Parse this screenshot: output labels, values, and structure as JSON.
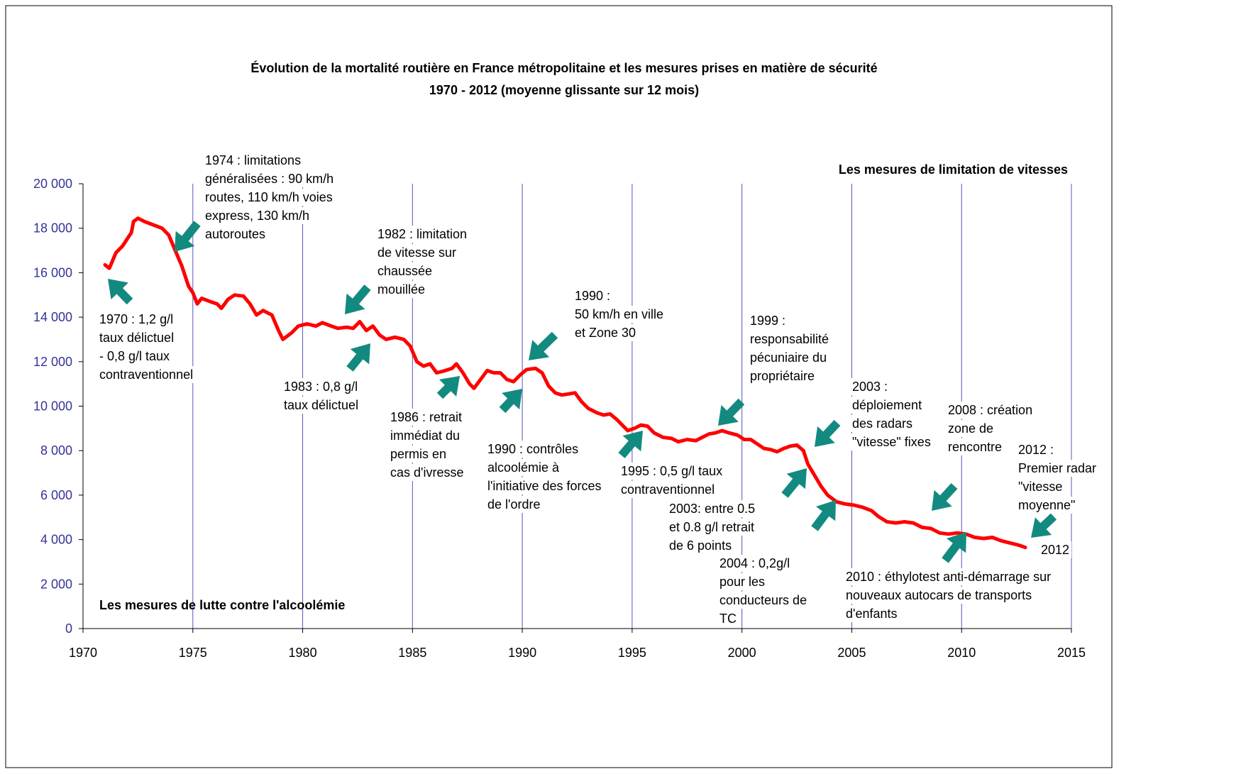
{
  "chart_data": {
    "type": "line",
    "title": "Évolution de la mortalité routière en France métropolitaine et les mesures prises en matière de sécurité",
    "subtitle": "1970 - 2012 (moyenne glissante sur 12 mois)",
    "x": [
      1971.0,
      1971.2,
      1971.5,
      1971.8,
      1972.0,
      1972.2,
      1972.3,
      1972.5,
      1972.8,
      1973.2,
      1973.6,
      1973.9,
      1974.2,
      1974.5,
      1974.8,
      1975.0,
      1975.2,
      1975.4,
      1975.8,
      1976.1,
      1976.3,
      1976.6,
      1976.9,
      1977.3,
      1977.6,
      1977.9,
      1978.2,
      1978.6,
      1978.9,
      1979.1,
      1979.5,
      1979.8,
      1980.2,
      1980.6,
      1980.9,
      1981.3,
      1981.6,
      1982.0,
      1982.3,
      1982.6,
      1982.9,
      1983.2,
      1983.5,
      1983.8,
      1984.2,
      1984.6,
      1984.9,
      1985.2,
      1985.5,
      1985.8,
      1986.1,
      1986.5,
      1986.8,
      1987.0,
      1987.3,
      1987.6,
      1987.8,
      1988.1,
      1988.4,
      1988.7,
      1989.0,
      1989.3,
      1989.6,
      1989.9,
      1990.2,
      1990.6,
      1990.9,
      1991.2,
      1991.5,
      1991.8,
      1992.1,
      1992.4,
      1992.7,
      1993.0,
      1993.4,
      1993.7,
      1994.0,
      1994.3,
      1994.6,
      1994.8,
      1995.1,
      1995.4,
      1995.7,
      1996.0,
      1996.4,
      1996.8,
      1997.1,
      1997.5,
      1997.9,
      1998.2,
      1998.5,
      1998.8,
      1999.1,
      1999.4,
      1999.8,
      2000.1,
      2000.4,
      2000.7,
      2001.0,
      2001.3,
      2001.6,
      2001.9,
      2002.2,
      2002.5,
      2002.8,
      2003.0,
      2003.3,
      2003.6,
      2003.9,
      2004.3,
      2004.7,
      2005.1,
      2005.5,
      2005.9,
      2006.2,
      2006.6,
      2007.0,
      2007.4,
      2007.8,
      2008.2,
      2008.6,
      2009.0,
      2009.4,
      2009.8,
      2010.2,
      2010.6,
      2011.0,
      2011.4,
      2011.8,
      2012.2,
      2012.6,
      2012.9
    ],
    "values": [
      16350,
      16200,
      16900,
      17200,
      17500,
      17800,
      18300,
      18450,
      18300,
      18150,
      18000,
      17700,
      17000,
      16300,
      15400,
      15100,
      14600,
      14850,
      14700,
      14600,
      14400,
      14800,
      15000,
      14950,
      14600,
      14100,
      14300,
      14100,
      13400,
      13000,
      13300,
      13600,
      13700,
      13600,
      13750,
      13600,
      13500,
      13550,
      13500,
      13800,
      13400,
      13600,
      13200,
      13000,
      13100,
      13000,
      12700,
      12000,
      11800,
      11900,
      11500,
      11600,
      11700,
      11900,
      11500,
      11000,
      10800,
      11200,
      11600,
      11500,
      11500,
      11200,
      11100,
      11400,
      11650,
      11700,
      11500,
      10900,
      10600,
      10500,
      10550,
      10600,
      10200,
      9900,
      9700,
      9600,
      9650,
      9400,
      9100,
      8900,
      9000,
      9150,
      9100,
      8800,
      8600,
      8550,
      8400,
      8500,
      8450,
      8600,
      8750,
      8800,
      8900,
      8800,
      8700,
      8500,
      8500,
      8300,
      8100,
      8050,
      7950,
      8100,
      8200,
      8250,
      8000,
      7400,
      6900,
      6400,
      6000,
      5700,
      5600,
      5550,
      5450,
      5300,
      5050,
      4800,
      4750,
      4800,
      4750,
      4550,
      4500,
      4300,
      4250,
      4300,
      4250,
      4100,
      4050,
      4100,
      3950,
      3850,
      3750,
      3650
    ],
    "color": "#ff0000",
    "xlim": [
      1970,
      2015
    ],
    "xticks": [
      1970,
      1975,
      1980,
      1985,
      1990,
      1995,
      2000,
      2005,
      2010,
      2015
    ],
    "ylim": [
      0,
      20000
    ],
    "yticks": [
      0,
      {
        "value": 2000,
        "label": "2 000"
      },
      {
        "value": 4000,
        "label": "4 000"
      },
      {
        "value": 6000,
        "label": "6 000"
      },
      {
        "value": 8000,
        "label": "8 000"
      },
      {
        "value": 10000,
        "label": "10 000"
      },
      {
        "value": 12000,
        "label": "12 000"
      },
      {
        "value": 14000,
        "label": "14 000"
      },
      {
        "value": 16000,
        "label": "16 000"
      },
      {
        "value": 18000,
        "label": "18 000"
      },
      {
        "value": 20000,
        "label": "20 000"
      }
    ],
    "grid_x": true,
    "section_labels": [
      "Les mesures de limitation de vitesses",
      "Les mesures de lutte contre l'alcoolémie"
    ],
    "annotations": [
      [
        "1974 : limitations",
        "généralisées : 90 km/h",
        "routes, 110 km/h voies",
        "express,  130 km/h",
        "autoroutes"
      ],
      [
        "1970 : 1,2 g/l",
        "taux délictuel",
        "- 0,8 g/l  taux",
        "contraventionnel"
      ],
      [
        "1982 : limitation",
        "de vitesse sur",
        "chaussée",
        "mouillée"
      ],
      [
        "1983 : 0,8 g/l",
        "taux délictuel"
      ],
      [
        "1986 : retrait",
        "immédiat du",
        "permis  en",
        "cas d'ivresse"
      ],
      [
        "1990 :",
        "50 km/h en ville",
        "et Zone 30"
      ],
      [
        "1990 : contrôles",
        "alcoolémie à",
        "l'initiative des forces",
        "de l'ordre"
      ],
      [
        "1995 : 0,5 g/l  taux",
        "contraventionnel"
      ],
      [
        "1999 :",
        "responsabilité",
        "pécuniaire du",
        "propriétaire"
      ],
      [
        "2003: entre 0.5",
        "et 0.8 g/l  retrait",
        "de 6 points"
      ],
      [
        "2004 : 0,2g/l",
        "pour les",
        "conducteurs de",
        "TC"
      ],
      [
        "2003 :",
        "déploiement",
        "des  radars",
        "\"vitesse\" fixes"
      ],
      [
        "2008 : création",
        "zone de",
        "rencontre"
      ],
      [
        "2012 :",
        "Premier radar",
        "\"vitesse",
        "moyenne\""
      ],
      [
        "2010 : éthylotest anti-démarrage sur",
        "nouveaux autocars de transports",
        "d'enfants"
      ],
      [
        "2012"
      ]
    ]
  }
}
